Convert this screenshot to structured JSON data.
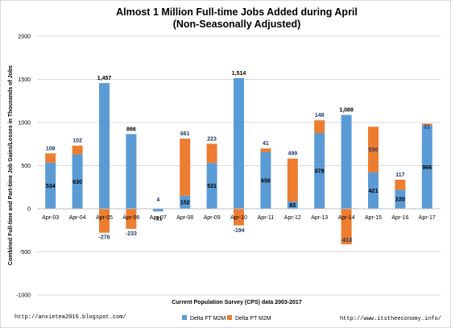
{
  "chart_data": {
    "type": "bar",
    "stacked": true,
    "title": "Almost 1 Million Full-time Jobs Added during April",
    "subtitle": "(Non-Seasonally Adjusted)",
    "xlabel": "Current Population Survey (CPS) data 2003-2017",
    "ylabel": "Combined Full-time and Part-time Job Gains/Losses in Thousands of Jobs",
    "ylim": [
      -1000,
      2000
    ],
    "yticks": [
      -1000,
      -500,
      0,
      500,
      1000,
      1500,
      2000
    ],
    "ytick_labels": [
      "-1000",
      "-500",
      "0",
      "500",
      "1000",
      "1500",
      "2000"
    ],
    "grid": true,
    "legend_position": "bottom-center",
    "categories": [
      "Apr-03",
      "Apr-04",
      "Apr-05",
      "Apr-06",
      "Apr-07",
      "Apr-08",
      "Apr-09",
      "Apr-10",
      "Apr-11",
      "Apr-12",
      "Apr-13",
      "Apr-14",
      "Apr-15",
      "Apr-16",
      "Apr-17"
    ],
    "series": [
      {
        "name": "Delta FT M2M",
        "color": "#5b9bd5",
        "label_color": "#000000",
        "values": [
          534,
          630,
          1457,
          866,
          -31,
          152,
          531,
          1514,
          658,
          83,
          878,
          1088,
          421,
          220,
          966
        ],
        "labels": [
          "534",
          "630",
          "1,457",
          "866",
          "-31",
          "152",
          "531",
          "1,514",
          "658",
          "83",
          "878",
          "1,088",
          "421",
          "220",
          "966"
        ]
      },
      {
        "name": "Delta PT M2M",
        "color": "#ed7d31",
        "label_color": "#1f3864",
        "values": [
          108,
          102,
          -278,
          -233,
          4,
          661,
          223,
          -194,
          41,
          499,
          148,
          -413,
          530,
          117,
          21
        ],
        "labels": [
          "108",
          "102",
          "-278",
          "-233",
          "4",
          "661",
          "223",
          "-194",
          "41",
          "499",
          "148",
          "-413",
          "530",
          "117",
          "21"
        ]
      }
    ]
  },
  "footer": {
    "left_url": "http://anxietea2016.blogspot.com/",
    "right_url": "http://www.itstheeconomy.info/"
  }
}
